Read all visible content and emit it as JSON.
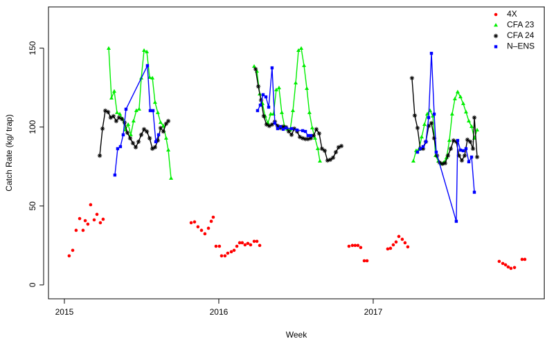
{
  "chart_data": {
    "type": "scatter",
    "x_label": "Week",
    "y_label": "Catch Rate (kg/ trap)",
    "xlim": [
      2014.897,
      2018.108
    ],
    "ylim": [
      -8.8,
      176.1
    ],
    "xticks": [
      2015,
      2016,
      2017
    ],
    "yticks": [
      0,
      50,
      100,
      150
    ],
    "legend": "top-right",
    "series": [
      {
        "name": "4X",
        "color": "#ff0000",
        "marker": "circle",
        "line": false,
        "x": [
          2015.031,
          2015.054,
          2015.076,
          2015.099,
          2015.121,
          2015.135,
          2015.152,
          2015.17,
          2015.193,
          2015.211,
          2015.233,
          2015.251,
          2015.821,
          2015.843,
          2015.865,
          2015.888,
          2015.91,
          2015.933,
          2015.951,
          2015.964,
          2015.982,
          2016.004,
          2016.018,
          2016.04,
          2016.058,
          2016.081,
          2016.099,
          2016.117,
          2016.135,
          2016.152,
          2016.17,
          2016.188,
          2016.206,
          2016.229,
          2016.247,
          2016.265,
          2016.843,
          2016.865,
          2016.883,
          2016.901,
          2016.919,
          2016.942,
          2016.96,
          2017.094,
          2017.112,
          2017.13,
          2017.148,
          2017.166,
          2017.188,
          2017.206,
          2017.224,
          2017.816,
          2017.839,
          2017.857,
          2017.874,
          2017.892,
          2017.915,
          2017.964,
          2017.982
        ],
        "values": [
          18.4,
          21.9,
          34.6,
          42.0,
          34.6,
          40.7,
          38.5,
          50.8,
          41.2,
          44.7,
          39.4,
          41.6,
          39.4,
          39.9,
          36.8,
          34.6,
          32.4,
          35.9,
          40.3,
          42.9,
          24.5,
          24.5,
          18.4,
          18.4,
          20.1,
          21.0,
          21.9,
          24.5,
          26.7,
          26.7,
          25.4,
          26.3,
          25.4,
          27.6,
          27.6,
          25.0,
          24.5,
          25.0,
          25.0,
          25.0,
          23.7,
          15.3,
          15.3,
          22.8,
          23.2,
          25.4,
          27.2,
          30.7,
          28.9,
          26.7,
          24.1,
          14.9,
          13.6,
          12.7,
          11.4,
          10.5,
          11.0,
          16.2,
          16.2
        ]
      },
      {
        "name": "CFA 23",
        "color": "#00ee00",
        "marker": "triangle",
        "line": true,
        "x": [
          2015.287,
          2015.305,
          2015.323,
          2015.341,
          2015.359,
          2015.377,
          2015.395,
          2015.413,
          2015.43,
          2015.448,
          2015.466,
          2015.484,
          2015.498,
          2015.516,
          2015.534,
          2015.552,
          2015.57,
          2015.587,
          2015.605,
          2015.623,
          2015.641,
          2015.659,
          2015.673,
          2015.691,
          null,
          2016.229,
          2016.247,
          2016.265,
          2016.283,
          2016.3,
          2016.318,
          2016.336,
          2016.354,
          2016.372,
          2016.39,
          2016.408,
          2016.426,
          2016.444,
          2016.462,
          2016.48,
          2016.498,
          2016.516,
          2016.534,
          2016.552,
          2016.57,
          2016.587,
          2016.605,
          2016.623,
          2016.641,
          2016.655,
          null,
          2017.26,
          2017.278,
          2017.296,
          2017.314,
          2017.332,
          2017.35,
          2017.368,
          2017.386,
          2017.404,
          2017.422,
          2017.439,
          2017.457,
          2017.475,
          2017.493,
          2017.511,
          2017.529,
          2017.547,
          2017.565,
          2017.583,
          2017.601,
          2017.619,
          2017.637,
          2017.655,
          2017.673
        ],
        "values": [
          149.8,
          118.3,
          122.6,
          109.1,
          108.2,
          105.1,
          98.1,
          101.6,
          95.1,
          103.8,
          110.4,
          111.3,
          131.0,
          148.5,
          147.6,
          131.4,
          131.0,
          115.6,
          109.1,
          102.9,
          100.7,
          92.9,
          85.4,
          67.5,
          null,
          138.4,
          135.3,
          120.9,
          114.8,
          106.9,
          102.5,
          108.2,
          108.2,
          123.5,
          124.8,
          109.1,
          100.3,
          98.6,
          98.1,
          110.4,
          127.9,
          148.5,
          149.8,
          138.9,
          124.4,
          109.1,
          99.4,
          92.9,
          86.3,
          78.4,
          null,
          78.4,
          85.0,
          85.9,
          93.7,
          101.6,
          108.2,
          110.4,
          106.9,
          81.9,
          78.4,
          76.7,
          77.5,
          80.6,
          91.5,
          108.2,
          117.8,
          122.2,
          119.1,
          114.8,
          109.5,
          103.8,
          100.3,
          92.9,
          98.1
        ]
      },
      {
        "name": "CFA 24",
        "color": "#000000",
        "marker": "asterisk",
        "line": true,
        "x": [
          2015.229,
          2015.247,
          2015.265,
          2015.283,
          2015.3,
          2015.318,
          2015.336,
          2015.354,
          2015.372,
          2015.39,
          2015.408,
          2015.426,
          2015.444,
          2015.462,
          2015.48,
          2015.498,
          2015.516,
          2015.534,
          2015.552,
          2015.57,
          2015.587,
          2015.605,
          2015.623,
          2015.641,
          2015.659,
          2015.673,
          null,
          2016.238,
          2016.256,
          2016.274,
          2016.291,
          2016.309,
          2016.327,
          2016.345,
          2016.363,
          2016.381,
          2016.399,
          2016.417,
          2016.435,
          2016.453,
          2016.471,
          2016.489,
          2016.507,
          2016.525,
          2016.543,
          2016.561,
          2016.578,
          2016.596,
          2016.614,
          2016.632,
          2016.65,
          2016.668,
          2016.686,
          2016.704,
          2016.722,
          2016.74,
          2016.758,
          2016.776,
          2016.794,
          null,
          2017.251,
          2017.269,
          2017.287,
          2017.305,
          2017.323,
          2017.341,
          2017.359,
          2017.377,
          2017.395,
          2017.413,
          2017.43,
          2017.448,
          2017.466,
          2017.484,
          2017.502,
          2017.52,
          2017.538,
          2017.556,
          2017.574,
          2017.592,
          2017.61,
          2017.628,
          2017.646,
          2017.655,
          2017.673
        ],
        "values": [
          81.9,
          99.0,
          110.4,
          109.5,
          106.0,
          106.9,
          103.8,
          106.0,
          105.1,
          102.9,
          96.4,
          92.9,
          89.8,
          87.2,
          90.7,
          95.1,
          98.6,
          97.2,
          92.9,
          86.3,
          87.2,
          91.5,
          99.4,
          97.2,
          102.1,
          103.8,
          null,
          136.7,
          125.7,
          117.0,
          106.9,
          101.6,
          100.7,
          101.6,
          103.4,
          100.7,
          99.4,
          100.3,
          99.9,
          97.2,
          95.1,
          99.0,
          97.2,
          93.7,
          92.9,
          92.4,
          92.4,
          92.9,
          94.6,
          98.6,
          95.9,
          86.3,
          85.0,
          78.8,
          79.3,
          80.6,
          84.1,
          87.2,
          88.0,
          null,
          131.0,
          107.3,
          99.4,
          86.3,
          86.3,
          90.7,
          100.7,
          102.5,
          92.9,
          81.9,
          77.5,
          76.7,
          77.1,
          81.9,
          86.3,
          91.5,
          90.7,
          81.9,
          78.8,
          81.9,
          92.0,
          90.7,
          86.3,
          106.0,
          81.0
        ]
      },
      {
        "name": "N–ENS",
        "color": "#0000ff",
        "marker": "square",
        "line": true,
        "x": [
          2015.327,
          2015.345,
          2015.363,
          2015.381,
          2015.399,
          2015.538,
          2015.556,
          2015.574,
          2015.592,
          2015.61,
          null,
          2016.251,
          2016.269,
          2016.287,
          2016.305,
          2016.323,
          2016.345,
          2016.363,
          2016.381,
          2016.399,
          2016.417,
          2016.435,
          2016.471,
          2016.507,
          2016.543,
          2016.561,
          2016.578,
          2016.596,
          null,
          2017.287,
          2017.305,
          2017.323,
          2017.341,
          2017.359,
          2017.377,
          2017.395,
          2017.408,
          2017.538,
          2017.547,
          2017.565,
          2017.583,
          2017.601,
          2017.619,
          2017.637,
          2017.655
        ],
        "values": [
          69.6,
          86.3,
          87.6,
          95.1,
          111.3,
          138.9,
          110.4,
          110.4,
          90.7,
          95.1,
          null,
          110.4,
          113.9,
          120.5,
          119.1,
          112.6,
          137.5,
          102.5,
          99.0,
          100.3,
          98.6,
          99.4,
          99.0,
          98.1,
          97.7,
          97.2,
          94.6,
          94.6,
          null,
          84.1,
          86.3,
          87.6,
          90.7,
          106.0,
          146.7,
          108.2,
          84.1,
          40.3,
          91.5,
          85.4,
          85.0,
          86.3,
          78.0,
          81.0,
          58.7
        ]
      }
    ]
  }
}
